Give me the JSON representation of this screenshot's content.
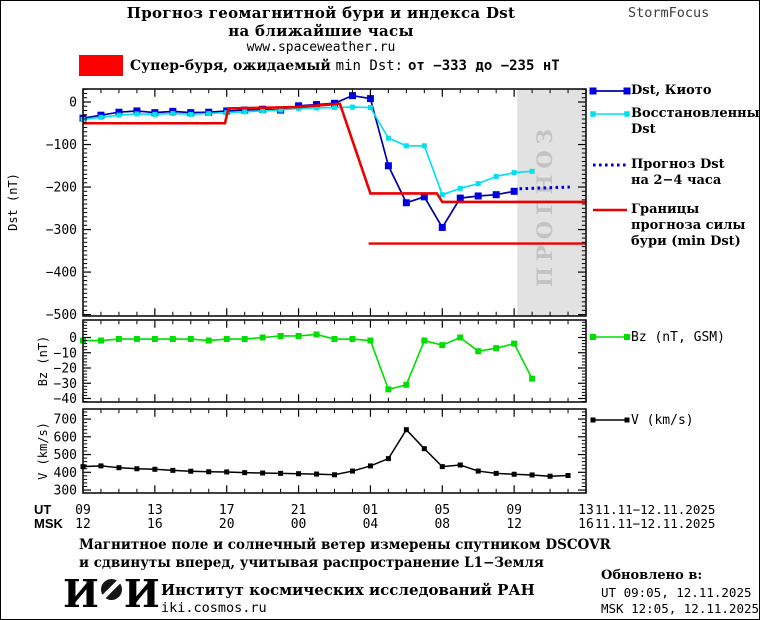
{
  "header": {
    "title_line1": "Прогноз геомагнитной бури и индекса Dst",
    "title_line2": "на ближайшие часы",
    "site": "www.spaceweather.ru",
    "brand": "StormFocus"
  },
  "warning": {
    "level_color": "#ff0000",
    "text_bold": "Супер-буря, ожидаемый",
    "text_mid": "min Dst:",
    "text_range": "от −333 до −235 нТ"
  },
  "forecast_band": {
    "label": "ПРОГНОЗ",
    "fill": "#e2e2e2",
    "text_color": "#c3c3c3"
  },
  "colors": {
    "kyoto_line": "#0000a8",
    "kyoto_marker": "#0000e0",
    "restored": "#00e0ee",
    "forecast": "#0000dd",
    "bounds": "#ee0000",
    "bz": "#00dd00",
    "v": "#000000"
  },
  "xaxis": {
    "ut_label": "UT",
    "msk_label": "MSK",
    "ut_ticks": [
      "09",
      "13",
      "17",
      "21",
      "01",
      "05",
      "09",
      "13"
    ],
    "msk_ticks": [
      "12",
      "16",
      "20",
      "00",
      "04",
      "08",
      "12",
      "16"
    ],
    "ut_date": "11.11−12.11.2025",
    "msk_date": "11.11−12.11.2025",
    "x_unit": "hours since 09 UT 11.11.2025, major tick every 4 h"
  },
  "legend": {
    "dst_kyoto": [
      "Dst, Киото"
    ],
    "restored": [
      "Восстановленный",
      "Dst"
    ],
    "forecast": [
      "Прогноз Dst",
      "на 2−4 часа"
    ],
    "bounds": [
      "Границы",
      "прогноза силы",
      "бури (min Dst)"
    ],
    "bz": [
      "Bz (nT, GSM)"
    ],
    "v": [
      "V (km/s)"
    ]
  },
  "chart_data": [
    {
      "type": "line",
      "title": "Dst index: measured, restored and forecast",
      "ylabel": "Dst (nT)",
      "ylim": [
        -503,
        31
      ],
      "yticks": [
        0,
        -100,
        -200,
        -300,
        -400,
        -500
      ],
      "grid": false,
      "legend_position": "right",
      "forecast_region_start_hour": 24.17,
      "series": [
        {
          "id": "dst-kyoto",
          "name": "Dst, Киото",
          "marker": "square",
          "x": [
            0,
            1,
            2,
            3,
            4,
            5,
            6,
            7,
            8,
            9,
            10,
            11,
            12,
            13,
            14,
            15,
            16,
            17,
            18,
            19,
            20,
            21,
            22,
            23,
            24
          ],
          "values": [
            -38,
            -31,
            -24,
            -21,
            -25,
            -22,
            -25,
            -24,
            -21,
            -19,
            -17,
            -19,
            -9,
            -6,
            -3,
            15,
            8,
            -150,
            -237,
            -223,
            -295,
            -226,
            -221,
            -218,
            -210
          ]
        },
        {
          "id": "restored-dst",
          "name": "Восстановленный Dst",
          "marker": "square",
          "x": [
            0,
            1,
            2,
            3,
            4,
            5,
            6,
            7,
            8,
            9,
            10,
            11,
            12,
            13,
            14,
            15,
            16,
            17,
            18,
            19,
            20,
            21,
            22,
            23,
            24,
            25
          ],
          "values": [
            -41,
            -36,
            -31,
            -28,
            -29,
            -27,
            -29,
            -27,
            -25,
            -23,
            -21,
            -19,
            -15,
            -14,
            -13,
            -12,
            -13,
            -85,
            -103,
            -103,
            -218,
            -203,
            -192,
            -175,
            -166,
            -163
          ]
        },
        {
          "id": "dst-forecast",
          "name": "Прогноз Dst на 2−4 часа",
          "style": "dotted",
          "x": [
            24.3,
            27.1
          ],
          "values": [
            -204,
            -200
          ]
        },
        {
          "id": "bounds-upper",
          "name": "Границы прогноза силы бури — верхняя",
          "x": [
            0,
            7.9,
            8.1,
            12,
            14.3,
            16,
            19.7,
            20,
            28
          ],
          "values": [
            -50,
            -50,
            -15,
            -12,
            -4,
            -215,
            -215,
            -235,
            -235
          ]
        },
        {
          "id": "bounds-lower",
          "name": "Границы прогноза силы бури — нижняя (min Dst)",
          "x": [
            15.9,
            28
          ],
          "values": [
            -333,
            -333
          ]
        }
      ]
    },
    {
      "type": "line",
      "title": "Bz GSM",
      "ylabel": "Bz (nT)",
      "ylim": [
        -42,
        11.5
      ],
      "yticks": [
        0,
        -10,
        -20,
        -30,
        -40
      ],
      "grid": false,
      "series": [
        {
          "id": "bz",
          "name": "Bz (nT, GSM)",
          "marker": "square",
          "x": [
            0,
            1,
            2,
            3,
            4,
            5,
            6,
            7,
            8,
            9,
            10,
            11,
            12,
            13,
            14,
            15,
            16,
            17,
            18,
            19,
            20,
            21,
            22,
            23,
            24,
            25
          ],
          "values": [
            -2,
            -2,
            -1,
            -1,
            -1,
            -1,
            -1,
            -2,
            -1,
            -1,
            0,
            1,
            1,
            2,
            -1,
            -1,
            -2,
            -34,
            -31,
            -2,
            -5,
            0,
            -9,
            -7,
            -4,
            -27
          ]
        }
      ]
    },
    {
      "type": "line",
      "title": "Solar wind speed",
      "ylabel": "V (km/s)",
      "ylim": [
        283,
        756
      ],
      "yticks": [
        700,
        600,
        500,
        400,
        300
      ],
      "grid": false,
      "series": [
        {
          "id": "v",
          "name": "V (km/s)",
          "marker": "square",
          "x": [
            0,
            1,
            2,
            3,
            4,
            5,
            6,
            7,
            8,
            9,
            10,
            11,
            12,
            13,
            14,
            15,
            16,
            17,
            18,
            19,
            20,
            21,
            22,
            23,
            24,
            25,
            26,
            27
          ],
          "values": [
            432,
            436,
            426,
            420,
            417,
            411,
            406,
            403,
            402,
            398,
            396,
            394,
            392,
            390,
            386,
            407,
            436,
            477,
            640,
            533,
            432,
            441,
            407,
            394,
            389,
            385,
            378,
            382
          ]
        }
      ]
    }
  ],
  "footer": {
    "line1": "Магнитное поле и солнечный ветер измерены спутником DSCOVR",
    "line2": "и сдвинуты вперед, учитывая распространение L1−Земля",
    "logo_left": "И",
    "logo_right": "И",
    "institute": "Институт космических исследований РАН",
    "site": "iki.cosmos.ru",
    "updated_label": "Обновлено в:",
    "updated_ut": "UT  09:05, 12.11.2025",
    "updated_msk": "MSK 12:05, 12.11.2025"
  }
}
